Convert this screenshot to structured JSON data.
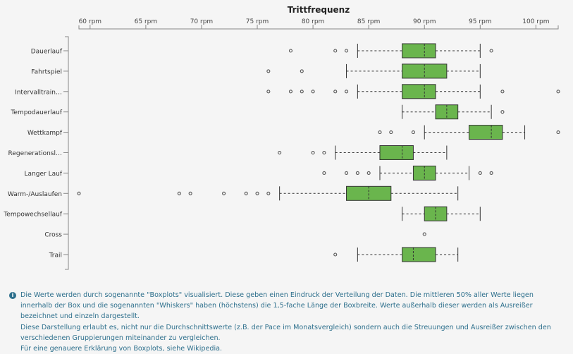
{
  "chart_data": {
    "type": "boxplot",
    "title": "Trittfrequenz",
    "unit_suffix": " rpm",
    "xlim": [
      59,
      102
    ],
    "ticks": [
      60,
      65,
      70,
      75,
      80,
      85,
      90,
      95,
      100
    ],
    "tick_labels": [
      "60 rpm",
      "65 rpm",
      "70 rpm",
      "75 rpm",
      "80 rpm",
      "85 rpm",
      "90 rpm",
      "95 rpm",
      "100 rpm"
    ],
    "box_color": "#6ab54d",
    "categories": [
      "Dauerlauf",
      "Fahrtspiel",
      "Intervalltrain…",
      "Tempodauerlauf",
      "Wettkampf",
      "Regenerationsl…",
      "Langer Lauf",
      "Warm-/Auslaufen",
      "Tempowechsellauf",
      "Cross",
      "Trail"
    ],
    "series": [
      {
        "category": "Dauerlauf",
        "whisker_low": 84,
        "q1": 88,
        "median": 90,
        "q3": 91,
        "whisker_high": 95,
        "outliers": [
          78,
          82,
          83,
          96
        ]
      },
      {
        "category": "Fahrtspiel",
        "whisker_low": 83,
        "q1": 88,
        "median": 90,
        "q3": 92,
        "whisker_high": 95,
        "outliers": [
          76,
          79
        ]
      },
      {
        "category": "Intervalltrain…",
        "whisker_low": 84,
        "q1": 88,
        "median": 90,
        "q3": 91,
        "whisker_high": 95,
        "outliers": [
          76,
          78,
          79,
          80,
          82,
          83,
          97,
          102
        ]
      },
      {
        "category": "Tempodauerlauf",
        "whisker_low": 88,
        "q1": 91,
        "median": 92,
        "q3": 93,
        "whisker_high": 96,
        "outliers": [
          97
        ]
      },
      {
        "category": "Wettkampf",
        "whisker_low": 90,
        "q1": 94,
        "median": 96,
        "q3": 97,
        "whisker_high": 99,
        "outliers": [
          86,
          87,
          89,
          102
        ]
      },
      {
        "category": "Regenerationsl…",
        "whisker_low": 82,
        "q1": 86,
        "median": 88,
        "q3": 89,
        "whisker_high": 92,
        "outliers": [
          77,
          80,
          81
        ]
      },
      {
        "category": "Langer Lauf",
        "whisker_low": 86,
        "q1": 89,
        "median": 90,
        "q3": 91,
        "whisker_high": 94,
        "outliers": [
          81,
          83,
          84,
          85,
          95,
          96
        ]
      },
      {
        "category": "Warm-/Auslaufen",
        "whisker_low": 77,
        "q1": 83,
        "median": 85,
        "q3": 87,
        "whisker_high": 93,
        "outliers": [
          59,
          68,
          69,
          72,
          74,
          75,
          76
        ]
      },
      {
        "category": "Tempowechsellauf",
        "whisker_low": 88,
        "q1": 90,
        "median": 91,
        "q3": 92,
        "whisker_high": 95,
        "outliers": []
      },
      {
        "category": "Cross",
        "whisker_low": null,
        "q1": null,
        "median": null,
        "q3": null,
        "whisker_high": null,
        "outliers": [
          90
        ]
      },
      {
        "category": "Trail",
        "whisker_low": 84,
        "q1": 88,
        "median": 89,
        "q3": 91,
        "whisker_high": 93,
        "outliers": [
          82
        ]
      }
    ]
  },
  "note": {
    "icon": "info-icon",
    "line1": "Die Werte werden durch sogenannte \"Boxplots\" visualisiert. Diese geben einen Eindruck der Verteilung der Daten. Die mittleren 50% aller Werte liegen innerhalb der Box und die sogenannten \"Whiskers\" haben (höchstens) die 1,5-fache Länge der Boxbreite. Werte außerhalb dieser werden als Ausreißer bezeichnet und einzeln dargestellt.",
    "line2": "Diese Darstellung erlaubt es, nicht nur die Durchschnittswerte (z.B. der Pace im Monatsvergleich) sondern auch die Streuungen und Ausreißer zwischen den verschiedenen Gruppierungen miteinander zu vergleichen.",
    "line3_prefix": "Für eine genauere Erklärung von Boxplots, siehe ",
    "line3_link": "Wikipedia",
    "line3_suffix": "."
  }
}
